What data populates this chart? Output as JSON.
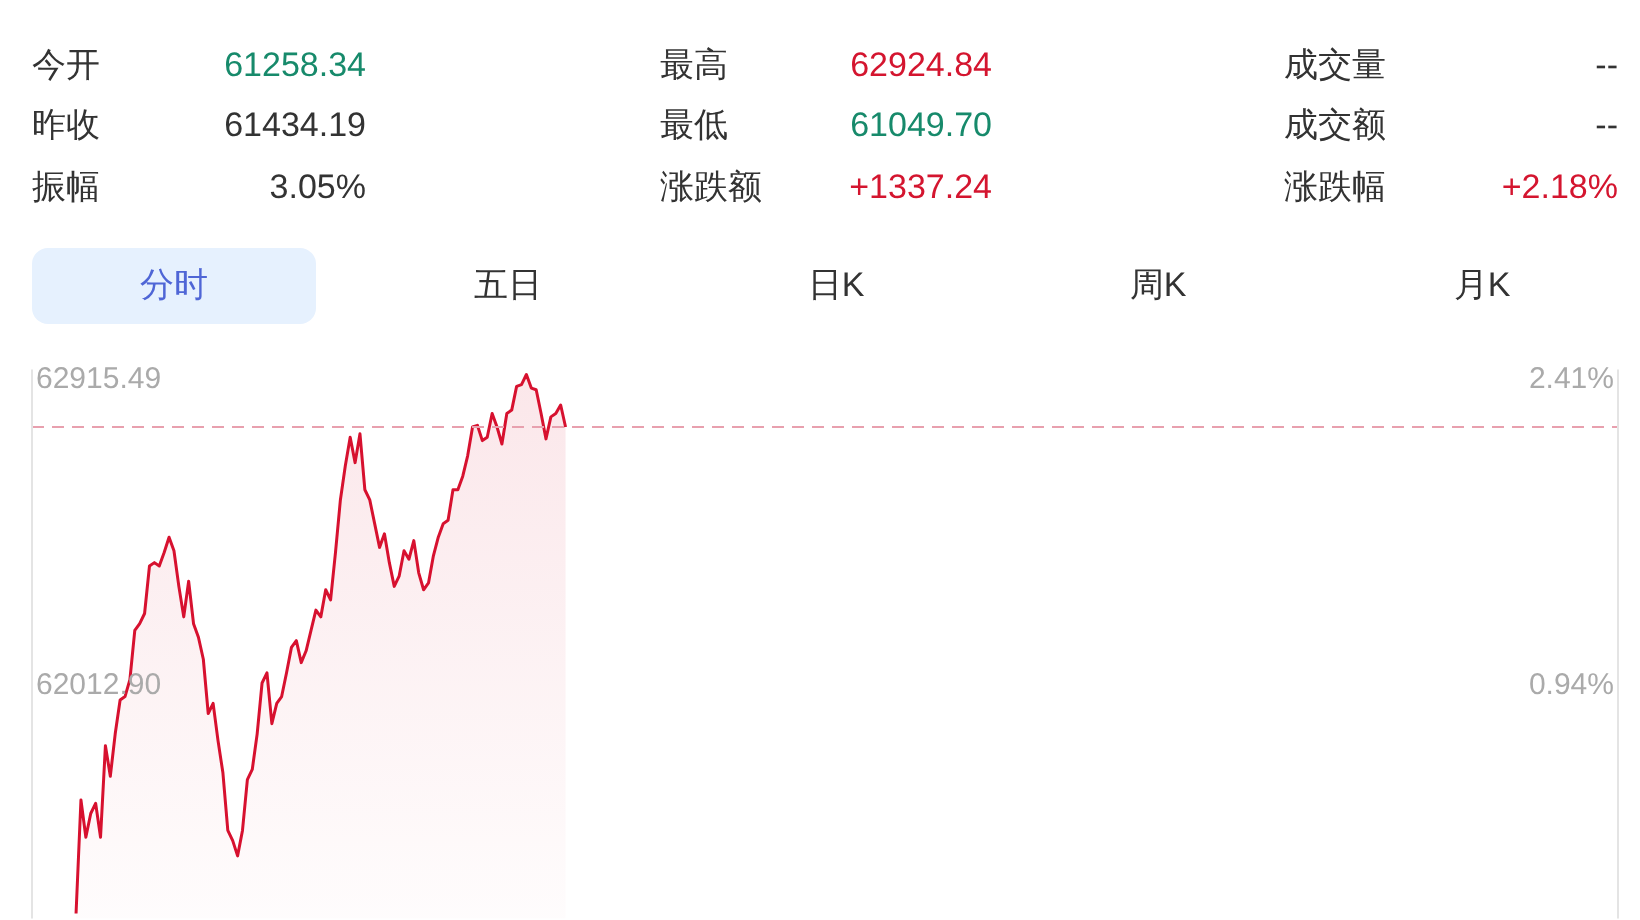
{
  "chart_data": [
    {
      "type": "other",
      "annotations": [
        "今开",
        "61258.34",
        "最高",
        "62924.84",
        "成交量",
        "--",
        "昨收",
        "61434.19",
        "最低",
        "61049.70",
        "成交额",
        "--",
        "振幅",
        "3.05%",
        "涨跌额",
        "+1337.24",
        "涨跌幅",
        "+2.18%",
        "分时",
        "五日",
        "日K",
        "周K",
        "月K"
      ],
      "colors": [
        "#333333",
        "#178a6b",
        "#333333",
        "#d4152f",
        "#333333",
        "#333333",
        "#333333",
        "#333333",
        "#333333",
        "#178a6b",
        "#333333",
        "#333333",
        "#333333",
        "#333333",
        "#333333",
        "#d4152f",
        "#333333",
        "#d4152f",
        "#4f66d6",
        "#333333",
        "#333333",
        "#333333",
        "#333333"
      ]
    },
    {
      "type": "area",
      "categories": [
        null,
        null,
        null,
        null,
        null,
        null,
        null,
        null,
        null,
        null,
        null,
        null,
        null,
        null,
        null,
        null,
        null,
        null,
        null,
        null,
        null,
        null,
        null,
        null,
        null,
        null,
        null,
        null,
        null,
        null,
        null,
        null,
        null,
        null,
        null,
        null,
        null,
        null,
        null,
        null,
        null,
        null,
        null,
        null,
        null,
        null,
        null,
        null,
        null,
        null,
        null,
        null,
        null,
        null,
        null,
        null,
        null,
        null,
        null,
        null,
        null,
        null,
        null,
        null,
        null,
        null,
        null,
        null,
        null,
        null,
        null,
        null,
        null,
        null,
        null,
        null,
        null,
        null,
        null,
        null,
        null,
        null,
        null,
        null,
        null,
        null,
        null,
        null,
        null,
        null,
        null,
        null,
        null,
        null,
        null,
        null,
        null,
        null,
        null,
        null,
        null,
        null,
        null,
        null,
        null,
        null,
        null,
        null,
        null,
        null,
        null,
        null,
        null,
        null,
        null,
        null,
        null,
        null,
        null,
        null,
        null,
        null,
        null,
        null,
        null,
        null,
        null,
        null,
        null,
        null,
        null,
        null,
        null,
        null,
        null,
        null,
        null,
        null,
        null,
        null,
        null,
        null,
        null,
        null,
        null,
        null,
        null,
        null,
        null,
        null,
        null,
        null,
        null,
        null,
        null,
        null,
        null,
        null,
        null,
        null,
        null,
        null,
        null,
        null,
        null,
        null,
        null,
        null,
        null,
        null,
        null,
        null,
        null,
        null,
        null,
        null,
        null,
        null,
        null,
        null,
        null,
        null,
        null,
        null,
        null,
        null,
        null,
        null,
        null,
        null,
        null,
        null,
        null,
        null,
        null,
        null,
        null,
        null,
        null,
        null,
        null,
        null,
        null,
        null,
        null,
        null,
        null,
        null,
        null,
        null,
        null,
        null,
        null,
        null,
        null,
        null,
        null,
        null,
        null,
        null,
        null,
        null,
        null,
        null,
        null,
        null,
        null,
        null,
        null,
        null,
        null,
        null,
        null,
        null,
        null,
        null,
        null,
        null,
        null,
        null,
        null,
        null,
        null,
        null,
        null,
        null,
        null,
        null,
        null,
        null,
        null,
        null,
        null,
        null,
        null,
        null,
        null,
        null,
        null,
        null,
        null,
        null,
        null,
        null,
        null,
        null,
        null,
        null,
        null,
        null,
        null,
        null,
        null,
        null,
        null,
        null,
        null,
        null,
        null,
        null,
        null,
        null,
        null,
        null,
        null,
        null,
        null,
        null,
        null,
        null,
        null,
        null,
        null,
        null,
        null,
        null,
        null,
        null,
        null,
        null,
        null,
        null,
        null,
        null,
        null,
        null,
        null,
        null,
        null,
        null,
        null,
        null,
        null,
        null,
        null,
        null,
        null,
        null,
        null,
        null,
        null,
        null,
        null,
        null,
        null
      ],
      "series": [
        {
          "color": "#d7112f",
          "values": [
            null,
            null,
            null,
            null,
            null,
            null,
            null,
            null,
            null,
            61335,
            61670,
            61560,
            61630,
            61660,
            61560,
            61830,
            61740,
            61865,
            61965,
            61975,
            62025,
            62170,
            62190,
            62220,
            62360,
            62370,
            62360,
            62400,
            62445,
            62405,
            62300,
            62210,
            62315,
            62190,
            62150,
            62085,
            61925,
            61955,
            61845,
            61750,
            61580,
            61550,
            61505,
            61580,
            61730,
            61760,
            61865,
            62015,
            62045,
            61895,
            61955,
            61975,
            62045,
            62120,
            62140,
            62075,
            62110,
            62170,
            62230,
            62210,
            62290,
            62260,
            62400,
            62555,
            62655,
            62740,
            62665,
            62750,
            62585,
            62555,
            62485,
            62415,
            62455,
            62370,
            62300,
            62330,
            62405,
            62380,
            62435,
            62340,
            62290,
            62310,
            62390,
            62445,
            62485,
            62495,
            62585,
            62585,
            62625,
            62685,
            62770,
            62775,
            62730,
            62740,
            62810,
            62770,
            62720,
            62810,
            62820,
            62890,
            62895,
            62925,
            62885,
            62880,
            62810,
            62735,
            62800,
            62810,
            62835,
            62770,
            null,
            null,
            null,
            null,
            null,
            null,
            null,
            null,
            null,
            null,
            null,
            null,
            null,
            null,
            null,
            null,
            null,
            null,
            null,
            null,
            null,
            null,
            null,
            null,
            null,
            null,
            null,
            null,
            null,
            null,
            null,
            null,
            null,
            null,
            null,
            null,
            null,
            null,
            null,
            null,
            null,
            null,
            null,
            null,
            null,
            null,
            null,
            null,
            null,
            null,
            null,
            null,
            null,
            null,
            null,
            null,
            null,
            null,
            null,
            null,
            null,
            null,
            null,
            null,
            null,
            null,
            null,
            null,
            null,
            null,
            null,
            null,
            null,
            null,
            null,
            null,
            null,
            null,
            null,
            null,
            null,
            null,
            null,
            null,
            null,
            null,
            null,
            null,
            null,
            null,
            null,
            null,
            null,
            null,
            null,
            null,
            null,
            null,
            null,
            null,
            null,
            null,
            null,
            null,
            null,
            null,
            null,
            null,
            null,
            null,
            null,
            null,
            null,
            null,
            null,
            null,
            null,
            null,
            null,
            null,
            null,
            null,
            null,
            null,
            null,
            null,
            null,
            null,
            null,
            null,
            null,
            null,
            null,
            null,
            null,
            null,
            null,
            null,
            null,
            null,
            null,
            null,
            null,
            null,
            null,
            null,
            null,
            null,
            null,
            null,
            null,
            null,
            null,
            null,
            null,
            null,
            null,
            null,
            null,
            null,
            null,
            null,
            null,
            null,
            null,
            null,
            null,
            null,
            null,
            null,
            null,
            null,
            null,
            null,
            null,
            null,
            null,
            null,
            null,
            null,
            null,
            null,
            null,
            null,
            null,
            null,
            null,
            null,
            null,
            null,
            null,
            null,
            null,
            null,
            null,
            null,
            null,
            null,
            null,
            null,
            null,
            null,
            null,
            null,
            null,
            null,
            null,
            null,
            null,
            null,
            null,
            null,
            null,
            null,
            null
          ]
        }
      ],
      "ylim": [
        61320,
        62940
      ],
      "yticks": [
        62915.49,
        {
          "value": 62012.9,
          "label": "62012.90"
        }
      ],
      "y2lim": [
        -0.19,
        2.45
      ],
      "y2ticks": [
        {
          "value": 2.41,
          "label": "2.41%"
        },
        {
          "value": 0.94,
          "label": "0.94%"
        }
      ],
      "ref_lines": [
        {
          "axis": "y",
          "value": 62770,
          "color": "#e8a0ae",
          "line_style": "dashed"
        }
      ],
      "tick_labels": "y"
    }
  ]
}
